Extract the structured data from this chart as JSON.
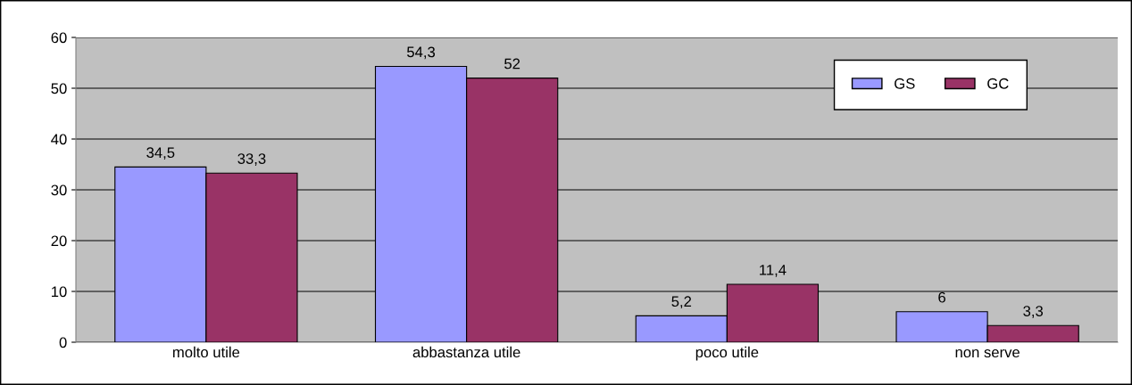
{
  "chart_data": {
    "type": "bar",
    "categories": [
      "molto utile",
      "abbastanza utile",
      "poco utile",
      "non serve"
    ],
    "series": [
      {
        "name": "GS",
        "color": "#9999ff",
        "values": [
          34.5,
          54.3,
          5.2,
          6
        ],
        "value_labels": [
          "34,5",
          "54,3",
          "5,2",
          "6"
        ]
      },
      {
        "name": "GC",
        "color": "#993366",
        "values": [
          33.3,
          52,
          11.4,
          3.3
        ],
        "value_labels": [
          "33,3",
          "52",
          "11,4",
          "3,3"
        ]
      }
    ],
    "ylim": [
      0,
      60
    ],
    "yticks": [
      0,
      10,
      20,
      30,
      40,
      50,
      60
    ],
    "grid": "y",
    "legend": "top right"
  }
}
